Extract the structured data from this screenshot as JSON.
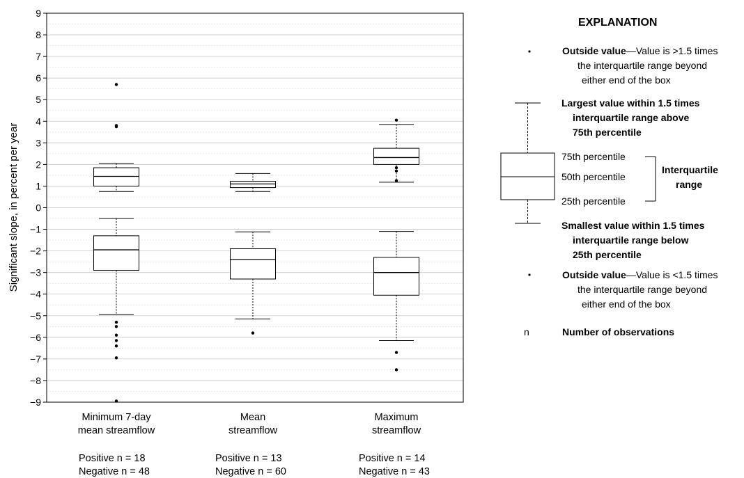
{
  "chart_data": {
    "type": "boxplot",
    "ylabel": "Significant slope, in percent per year",
    "ylim": [
      -9,
      9
    ],
    "yticks": [
      9,
      8,
      7,
      6,
      5,
      4,
      3,
      2,
      1,
      0,
      -1,
      -2,
      -3,
      -4,
      -5,
      -6,
      -7,
      -8,
      -9
    ],
    "ytick_labels": [
      "9",
      "8",
      "7",
      "6",
      "5",
      "4",
      "3",
      "2",
      "1",
      "0",
      "−1",
      "−2",
      "−3",
      "−4",
      "−5",
      "−6",
      "−7",
      "−8",
      "−9"
    ],
    "grid": true,
    "categories": [
      {
        "label_lines": [
          "Minimum 7-day",
          "mean streamflow"
        ],
        "positive_label": "Positive n = 18",
        "negative_label": "Negative n = 48",
        "positive_box": {
          "whisker_low": 0.75,
          "q1": 1.0,
          "median": 1.45,
          "q3": 1.85,
          "whisker_high": 2.05,
          "outliers": [
            3.75,
            3.8,
            5.7
          ]
        },
        "negative_box": {
          "whisker_low": -4.95,
          "q1": -2.9,
          "median": -1.95,
          "q3": -1.3,
          "whisker_high": -0.5,
          "outliers": [
            -5.3,
            -5.5,
            -5.9,
            -6.15,
            -6.4,
            -6.95,
            -8.95
          ]
        }
      },
      {
        "label_lines": [
          "Mean",
          "streamflow"
        ],
        "positive_label": "Positive n = 13",
        "negative_label": "Negative n = 60",
        "positive_box": {
          "whisker_low": 0.75,
          "q1": 0.93,
          "median": 1.1,
          "q3": 1.22,
          "whisker_high": 1.58,
          "outliers": []
        },
        "negative_box": {
          "whisker_low": -5.15,
          "q1": -3.3,
          "median": -2.4,
          "q3": -1.9,
          "whisker_high": -1.12,
          "outliers": [
            -5.8
          ]
        }
      },
      {
        "label_lines": [
          "Maximum",
          "streamflow"
        ],
        "positive_label": "Positive n = 14",
        "negative_label": "Negative n = 43",
        "positive_box": {
          "whisker_low": 1.18,
          "q1": 2.0,
          "median": 2.32,
          "q3": 2.75,
          "whisker_high": 3.85,
          "outliers": [
            1.25,
            1.7,
            1.85,
            4.05
          ]
        },
        "negative_box": {
          "whisker_low": -6.15,
          "q1": -4.05,
          "median": -3.0,
          "q3": -2.3,
          "whisker_high": -1.1,
          "outliers": [
            -6.7,
            -7.5
          ]
        }
      }
    ]
  },
  "explanation": {
    "title": "EXPLANATION",
    "outside_high_bold": "Outside value",
    "outside_high_rest": "—Value is >1.5 times",
    "outside_high_line2": "the interquartile range beyond",
    "outside_high_line3": "either end of the box",
    "largest_line1": "Largest value within 1.5 times",
    "largest_line2": "interquartile range above",
    "largest_line3": "75th percentile",
    "p75": "75th percentile",
    "p50": "50th percentile",
    "p25": "25th percentile",
    "iqr_line1": "Interquartile",
    "iqr_line2": "range",
    "smallest_line1": "Smallest value within 1.5 times",
    "smallest_line2": "interquartile range below",
    "smallest_line3": "25th percentile",
    "outside_low_bold": "Outside value",
    "outside_low_rest": "—Value is <1.5 times",
    "outside_low_line2": "the interquartile range beyond",
    "outside_low_line3": "either end of the box",
    "n_symbol": "n",
    "n_label": "Number of observations"
  }
}
